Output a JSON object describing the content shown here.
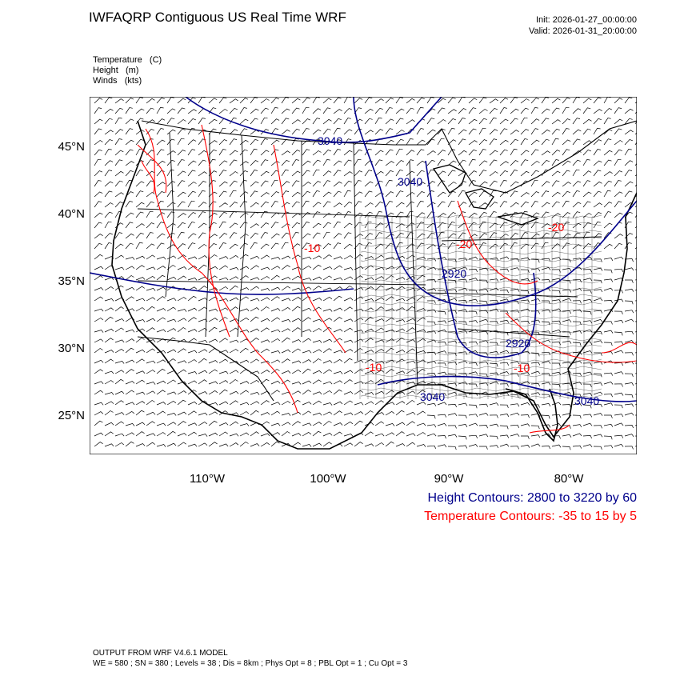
{
  "header": {
    "title": "IWFAQRP Contiguous US Real Time WRF",
    "init": "Init: 2026-01-27_00:00:00",
    "valid": "Valid: 2026-01-31_20:00:00"
  },
  "fields": [
    "Temperature   (C)",
    "Height   (m)",
    "Winds   (kts)"
  ],
  "map": {
    "lat_labels": [
      "45°N",
      "40°N",
      "35°N",
      "30°N",
      "25°N"
    ],
    "lon_labels": [
      "110°W",
      "100°W",
      "90°W",
      "80°W"
    ],
    "height_labels": [
      "3040",
      "3040",
      "2920",
      "2920",
      "3040",
      "3040"
    ],
    "temp_labels": [
      "-10",
      "-20",
      "-20",
      "-10",
      "-10"
    ],
    "colors": {
      "height": "#00008b",
      "temperature": "#ff0000",
      "borders": "#000000",
      "wind_barbs": "#000000"
    }
  },
  "legend": {
    "height": "Height Contours: 2800 to 3220 by 60",
    "temperature": "Temperature Contours: -35 to 15 by 5"
  },
  "footer": {
    "line1": "OUTPUT FROM WRF V4.6.1 MODEL",
    "line2": "WE = 580 ; SN = 380 ; Levels = 38 ; Dis = 8km ; Phys Opt = 8 ; PBL Opt = 1 ; Cu Opt = 3"
  }
}
